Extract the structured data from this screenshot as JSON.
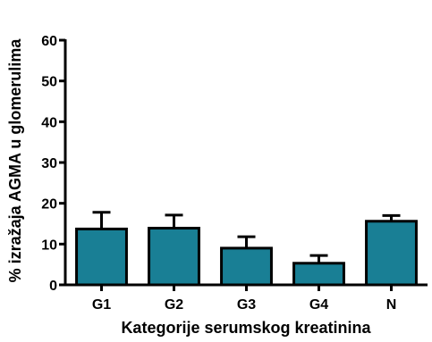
{
  "chart_data": {
    "type": "bar",
    "title": "",
    "xlabel": "Kategorije serumskog kreatinina",
    "ylabel": "% izražaja AGMA u glomerulima",
    "categories": [
      "G1",
      "G2",
      "G3",
      "G4",
      "N"
    ],
    "values": [
      13.7,
      13.9,
      9.0,
      5.3,
      15.6
    ],
    "error_upper": [
      17.8,
      17.1,
      11.8,
      7.2,
      17.0
    ],
    "ylim": [
      0,
      60
    ],
    "yticks": [
      0,
      10,
      20,
      30,
      40,
      50,
      60
    ],
    "ytick_labels": [
      "0",
      "10",
      "20",
      "30",
      "40",
      "50",
      "60"
    ],
    "grid": false,
    "legend": "none",
    "bar_color": "#197f95",
    "edge_color": "#000000"
  }
}
